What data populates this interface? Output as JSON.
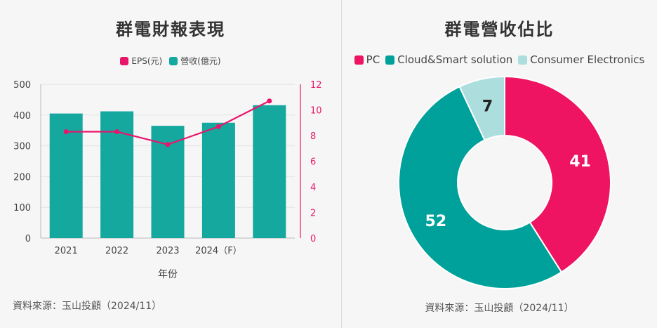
{
  "left": {
    "title": "群電財報表現",
    "source": "資料來源：玉山投顧（2024/11）",
    "legend": [
      {
        "label": "EPS(元)",
        "color": "#e8166a"
      },
      {
        "label": "營收(億元)",
        "color": "#14a89f"
      }
    ]
  },
  "right": {
    "title": "群電營收佔比",
    "source": "資料來源：玉山投顧（2024/11）",
    "legend": [
      {
        "label": "PC",
        "color": "#ee1462"
      },
      {
        "label": "Cloud&Smart solution",
        "color": "#00a19a"
      },
      {
        "label": "Consumer Electronics",
        "color": "#acdedd"
      }
    ]
  },
  "chart_data": [
    {
      "type": "bar",
      "title": "群電財報表現",
      "categories": [
        "2021",
        "2022",
        "2023",
        "2024（F）",
        ""
      ],
      "xlabel": "年份",
      "ylim_left": [
        0,
        500
      ],
      "yticks_left": [
        0,
        100,
        200,
        300,
        400,
        500
      ],
      "ylim_right": [
        0,
        12
      ],
      "yticks_right": [
        0,
        2,
        4,
        6,
        8,
        10,
        12
      ],
      "grid": true,
      "legend_position": "top-center",
      "series": [
        {
          "name": "營收(億元)",
          "kind": "bar",
          "axis": "left",
          "color": "#14a89f",
          "values": [
            405,
            412,
            365,
            375,
            432
          ]
        },
        {
          "name": "EPS(元)",
          "kind": "line",
          "axis": "right",
          "color": "#e8166a",
          "values": [
            8.3,
            8.3,
            7.3,
            8.7,
            10.7
          ]
        }
      ]
    },
    {
      "type": "pie",
      "style": "donut",
      "title": "群電營收佔比",
      "legend_position": "top-center",
      "slices": [
        {
          "label": "PC",
          "value": 41,
          "color": "#ee1462",
          "text_color": "#ffffff"
        },
        {
          "label": "Cloud&Smart solution",
          "value": 52,
          "color": "#00a19a",
          "text_color": "#ffffff"
        },
        {
          "label": "Consumer Electronics",
          "value": 7,
          "color": "#acdedd",
          "text_color": "#222222"
        }
      ]
    }
  ]
}
